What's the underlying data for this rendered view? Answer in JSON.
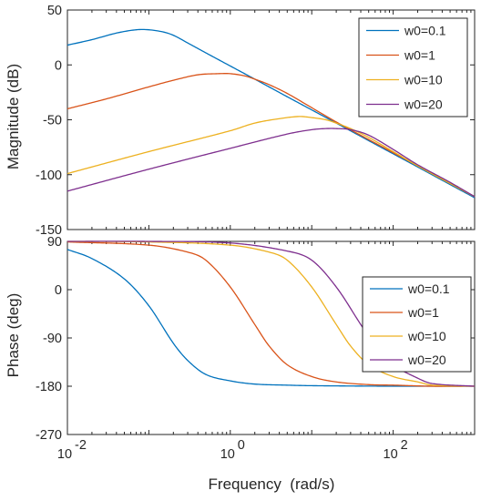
{
  "chart_data": [
    {
      "type": "line",
      "panel": "magnitude",
      "title": "",
      "xlabel": "",
      "ylabel": "Magnitude (dB)",
      "xscale": "log",
      "xlim": [
        0.01,
        1000
      ],
      "ylim": [
        -150,
        50
      ],
      "yticks": [
        "50",
        "0",
        "-50",
        "-100",
        "-150"
      ],
      "ytick_values": [
        50,
        0,
        -50,
        -100,
        -150
      ],
      "grid": false,
      "legend_position": "top-right",
      "series": [
        {
          "name": "w0=0.1",
          "color": "#0072BD",
          "x": [
            0.01,
            0.02,
            0.04,
            0.07,
            0.1,
            0.15,
            0.2,
            0.3,
            0.5,
            1,
            2,
            5,
            10,
            20,
            50,
            100,
            200,
            500,
            1000
          ],
          "y": [
            18,
            23,
            29,
            32,
            32,
            30,
            27,
            20,
            11,
            -1,
            -13,
            -29,
            -41,
            -53,
            -69,
            -81,
            -93,
            -109,
            -121
          ]
        },
        {
          "name": "w0=1",
          "color": "#D95319",
          "x": [
            0.01,
            0.03,
            0.1,
            0.2,
            0.4,
            0.7,
            1,
            1.5,
            2,
            3,
            5,
            10,
            20,
            50,
            100,
            200,
            500,
            1000
          ],
          "y": [
            -40,
            -31,
            -20,
            -14,
            -9,
            -8,
            -8,
            -10,
            -13,
            -18,
            -26,
            -39,
            -52,
            -68,
            -80,
            -92,
            -108,
            -120
          ]
        },
        {
          "name": "w0=10",
          "color": "#EDB120",
          "x": [
            0.01,
            0.1,
            1,
            2,
            4,
            7,
            10,
            15,
            20,
            30,
            50,
            100,
            200,
            500,
            1000
          ],
          "y": [
            -99,
            -79,
            -60,
            -53,
            -49,
            -47,
            -48,
            -50,
            -53,
            -58,
            -66,
            -79,
            -92,
            -108,
            -120
          ]
        },
        {
          "name": "w0=20",
          "color": "#7E2F8E",
          "x": [
            0.01,
            0.1,
            1,
            5,
            10,
            15,
            20,
            30,
            50,
            100,
            200,
            500,
            1000
          ],
          "y": [
            -115,
            -95,
            -76,
            -63,
            -59,
            -58,
            -58,
            -59,
            -64,
            -77,
            -91,
            -107,
            -120
          ]
        }
      ]
    },
    {
      "type": "line",
      "panel": "phase",
      "title": "",
      "xlabel": "Frequency  (rad/s)",
      "ylabel": "Phase (deg)",
      "xscale": "log",
      "xlim": [
        0.01,
        1000
      ],
      "xticks": [
        "10",
        "10",
        "10"
      ],
      "xtick_exponents": [
        "-2",
        "0",
        "2"
      ],
      "xtick_values": [
        0.01,
        1,
        100
      ],
      "ylim": [
        -270,
        90
      ],
      "yticks": [
        "90",
        "0",
        "-90",
        "-180",
        "-270"
      ],
      "ytick_values": [
        90,
        0,
        -90,
        -180,
        -270
      ],
      "grid": false,
      "legend_position": "top-right",
      "series": [
        {
          "name": "w0=0.1",
          "color": "#0072BD",
          "x": [
            0.01,
            0.02,
            0.05,
            0.1,
            0.2,
            0.3,
            0.5,
            1,
            2,
            5,
            10,
            100,
            300,
            1000
          ],
          "y": [
            75,
            58,
            20,
            -30,
            -100,
            -132,
            -158,
            -170,
            -176,
            -178,
            -179,
            -180,
            -180,
            -180
          ]
        },
        {
          "name": "w0=1",
          "color": "#D95319",
          "x": [
            0.01,
            0.1,
            0.3,
            0.5,
            1,
            2,
            3,
            5,
            10,
            20,
            50,
            100,
            300,
            1000
          ],
          "y": [
            89,
            83,
            70,
            55,
            5,
            -65,
            -105,
            -140,
            -162,
            -172,
            -177,
            -178,
            -180,
            -180
          ]
        },
        {
          "name": "w0=10",
          "color": "#EDB120",
          "x": [
            0.01,
            0.1,
            1,
            3,
            5,
            10,
            20,
            30,
            50,
            100,
            200,
            300,
            1000
          ],
          "y": [
            90,
            89,
            83,
            70,
            55,
            5,
            -65,
            -105,
            -140,
            -162,
            -172,
            -178,
            -180
          ]
        },
        {
          "name": "w0=20",
          "color": "#7E2F8E",
          "x": [
            0.01,
            0.1,
            1,
            5,
            10,
            20,
            40,
            60,
            100,
            200,
            300,
            1000
          ],
          "y": [
            90,
            90,
            87,
            72,
            55,
            5,
            -65,
            -105,
            -140,
            -165,
            -175,
            -180
          ]
        }
      ]
    }
  ]
}
